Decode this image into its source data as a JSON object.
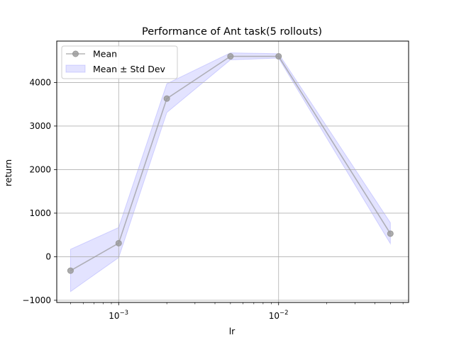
{
  "chart_data": {
    "type": "line",
    "title": "Performance of Ant task(5 rollouts)",
    "xlabel": "lr",
    "ylabel": "return",
    "xscale": "log",
    "xlim": [
      0.00041,
      0.065
    ],
    "ylim": [
      -1050,
      4950
    ],
    "grid": true,
    "legend_position": "top-left",
    "x_ticks": [
      {
        "value": 0.001,
        "label": "10",
        "exponent": "−3"
      },
      {
        "value": 0.01,
        "label": "10",
        "exponent": "−2"
      }
    ],
    "y_ticks": [
      {
        "value": -1000,
        "label": "−1000"
      },
      {
        "value": 0,
        "label": "0"
      },
      {
        "value": 1000,
        "label": "1000"
      },
      {
        "value": 2000,
        "label": "2000"
      },
      {
        "value": 3000,
        "label": "3000"
      },
      {
        "value": 4000,
        "label": "4000"
      }
    ],
    "x": [
      0.0005,
      0.001,
      0.002,
      0.005,
      0.01,
      0.05
    ],
    "series": [
      {
        "name": "Mean",
        "values": [
          -320,
          310,
          3630,
          4600,
          4600,
          530
        ],
        "color": "#999999"
      },
      {
        "name": "Mean ± Std Dev",
        "lower": [
          -800,
          -20,
          3310,
          4520,
          4560,
          300
        ],
        "upper": [
          170,
          670,
          3970,
          4680,
          4660,
          780
        ],
        "color": "#6666ff"
      }
    ]
  }
}
